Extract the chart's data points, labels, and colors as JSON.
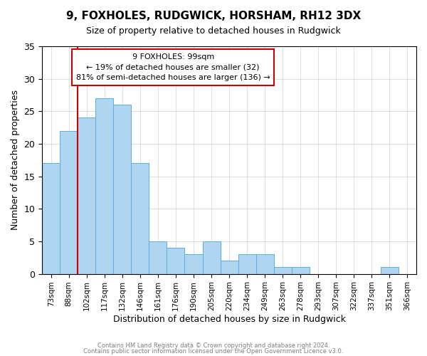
{
  "title1": "9, FOXHOLES, RUDGWICK, HORSHAM, RH12 3DX",
  "title2": "Size of property relative to detached houses in Rudgwick",
  "xlabel": "Distribution of detached houses by size in Rudgwick",
  "ylabel": "Number of detached properties",
  "bar_labels": [
    "73sqm",
    "88sqm",
    "102sqm",
    "117sqm",
    "132sqm",
    "146sqm",
    "161sqm",
    "176sqm",
    "190sqm",
    "205sqm",
    "220sqm",
    "234sqm",
    "249sqm",
    "263sqm",
    "278sqm",
    "293sqm",
    "307sqm",
    "322sqm",
    "337sqm",
    "351sqm",
    "366sqm"
  ],
  "bar_heights": [
    17,
    22,
    24,
    27,
    26,
    17,
    5,
    4,
    3,
    5,
    2,
    3,
    3,
    1,
    1,
    0,
    0,
    0,
    0,
    1,
    0
  ],
  "bar_color": "#aed6f1",
  "bar_edge_color": "#5dade2",
  "vline_color": "#cc0000",
  "annotation_title": "9 FOXHOLES: 99sqm",
  "annotation_line1": "← 19% of detached houses are smaller (32)",
  "annotation_line2": "81% of semi-detached houses are larger (136) →",
  "annotation_box_edge": "#cc0000",
  "footer1": "Contains HM Land Registry data © Crown copyright and database right 2024.",
  "footer2": "Contains public sector information licensed under the Open Government Licence v3.0.",
  "ylim": [
    0,
    35
  ],
  "figsize": [
    6.0,
    5.0
  ],
  "dpi": 100
}
